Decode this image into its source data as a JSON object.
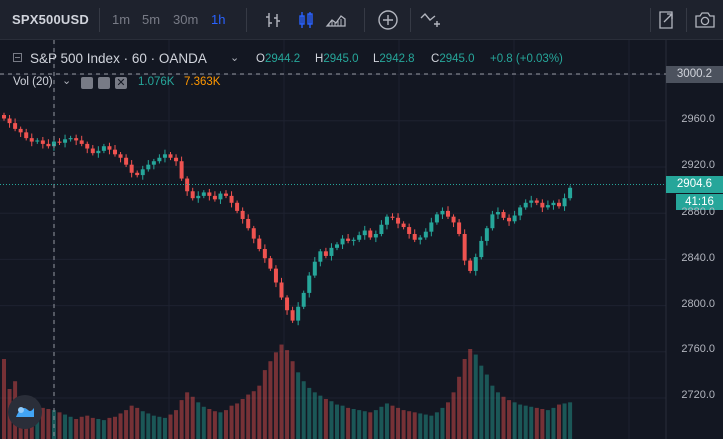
{
  "toolbar": {
    "symbol": "SPX500USD",
    "timeframes": [
      "1m",
      "5m",
      "30m",
      "1h"
    ],
    "active_timeframe": "1h"
  },
  "legend": {
    "title": "S&P 500 Index · 60 · OANDA",
    "ohlc": [
      {
        "k": "O",
        "v": "2944.2"
      },
      {
        "k": "H",
        "v": "2945.0"
      },
      {
        "k": "L",
        "v": "2942.8"
      },
      {
        "k": "C",
        "v": "2945.0"
      }
    ],
    "change": "+0.8 (+0.03%)"
  },
  "volume_legend": {
    "label": "Vol (20)",
    "value1": "1.076K",
    "value2": "7.363K"
  },
  "price_axis": {
    "crosshair_price": "3000.2",
    "last_price": "2904.6",
    "countdown": "41:16",
    "ticks": [
      "2960.0",
      "2920.0",
      "2880.0",
      "2840.0",
      "2800.0",
      "2760.0",
      "2720.0"
    ]
  },
  "colors": {
    "up": "#26a69a",
    "down": "#ef5350",
    "accent": "#2962ff",
    "background": "#131722"
  },
  "icons": [
    "bar-style-icon",
    "candle-style-icon",
    "area-style-icon",
    "add-indicator-icon",
    "compare-icon",
    "fullscreen-icon",
    "camera-icon",
    "tradingview-logo-icon"
  ],
  "chart_data": {
    "type": "candlestick",
    "y_range": [
      2700,
      3010
    ],
    "closes": [
      2962,
      2958,
      2953,
      2950,
      2945,
      2942,
      2943,
      2940,
      2938,
      2942,
      2941,
      2944,
      2945,
      2943,
      2940,
      2936,
      2932,
      2934,
      2938,
      2935,
      2931,
      2928,
      2922,
      2915,
      2913,
      2918,
      2922,
      2925,
      2928,
      2931,
      2928,
      2925,
      2910,
      2899,
      2893,
      2895,
      2898,
      2895,
      2892,
      2897,
      2895,
      2889,
      2882,
      2875,
      2867,
      2858,
      2849,
      2841,
      2832,
      2820,
      2807,
      2796,
      2787,
      2799,
      2811,
      2826,
      2838,
      2847,
      2843,
      2850,
      2853,
      2858,
      2856,
      2857,
      2861,
      2865,
      2859,
      2862,
      2870,
      2877,
      2876,
      2871,
      2868,
      2862,
      2857,
      2859,
      2864,
      2872,
      2879,
      2882,
      2877,
      2872,
      2862,
      2839,
      2830,
      2842,
      2856,
      2867,
      2879,
      2881,
      2876,
      2873,
      2878,
      2885,
      2889,
      2891,
      2889,
      2885,
      2887,
      2889,
      2886,
      2893,
      2902
    ],
    "volumes": [
      720,
      450,
      520,
      380,
      340,
      330,
      300,
      280,
      270,
      260,
      240,
      220,
      200,
      180,
      200,
      210,
      190,
      180,
      170,
      190,
      200,
      230,
      260,
      300,
      280,
      250,
      230,
      210,
      200,
      190,
      220,
      260,
      350,
      420,
      380,
      330,
      290,
      270,
      250,
      240,
      260,
      300,
      320,
      360,
      400,
      430,
      480,
      620,
      700,
      780,
      850,
      800,
      700,
      600,
      520,
      460,
      420,
      390,
      360,
      340,
      310,
      300,
      280,
      270,
      260,
      250,
      240,
      260,
      290,
      320,
      300,
      280,
      260,
      250,
      240,
      230,
      220,
      210,
      240,
      280,
      330,
      420,
      560,
      720,
      810,
      760,
      660,
      580,
      480,
      420,
      380,
      350,
      330,
      310,
      300,
      290,
      280,
      270,
      260,
      280,
      310,
      320,
      330
    ]
  }
}
